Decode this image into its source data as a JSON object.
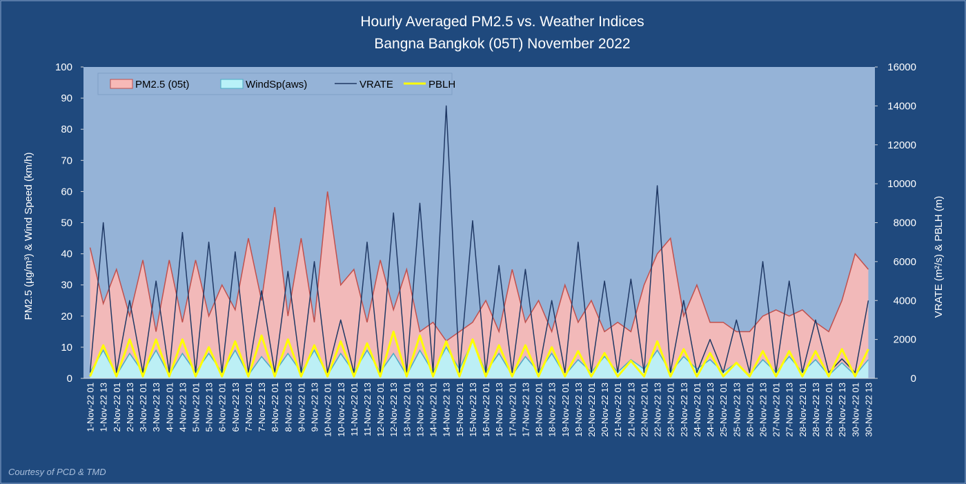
{
  "chart_data": {
    "type": "combo",
    "title": "Hourly Averaged  PM2.5 vs. Weather Indices",
    "subtitle": "Bangna Bangkok (05T) November 2022",
    "y_label": "PM2.5 (µg/m³)  &  Wind Speed (km/h)",
    "y2_label": "VRATE (m²/s) & PBLH (m)",
    "footnote": "Courtesy of PCD & TMD",
    "categories": [
      "1-Nov-22 01",
      "1-Nov-22 13",
      "2-Nov-22 01",
      "2-Nov-22 13",
      "3-Nov-22 01",
      "3-Nov-22 13",
      "4-Nov-22 01",
      "4-Nov-22 13",
      "5-Nov-22 01",
      "5-Nov-22 13",
      "6-Nov-22 01",
      "6-Nov-22 13",
      "7-Nov-22 01",
      "7-Nov-22 13",
      "8-Nov-22 01",
      "8-Nov-22 13",
      "9-Nov-22 01",
      "9-Nov-22 13",
      "10-Nov-22 01",
      "10-Nov-22 13",
      "11-Nov-22 01",
      "11-Nov-22 13",
      "12-Nov-22 01",
      "12-Nov-22 13",
      "13-Nov-22 01",
      "13-Nov-22 13",
      "14-Nov-22 01",
      "14-Nov-22 13",
      "15-Nov-22 01",
      "15-Nov-22 13",
      "16-Nov-22 01",
      "16-Nov-22 13",
      "17-Nov-22 01",
      "17-Nov-22 13",
      "18-Nov-22 01",
      "18-Nov-22 13",
      "19-Nov-22 01",
      "19-Nov-22 13",
      "20-Nov-22 01",
      "20-Nov-22 13",
      "21-Nov-22 01",
      "21-Nov-22 13",
      "22-Nov-22 01",
      "22-Nov-22 13",
      "23-Nov-22 01",
      "23-Nov-22 13",
      "24-Nov-22 01",
      "24-Nov-22 13",
      "25-Nov-22 01",
      "25-Nov-22 13",
      "26-Nov-22 01",
      "26-Nov-22 13",
      "27-Nov-22 01",
      "27-Nov-22 13",
      "28-Nov-22 01",
      "28-Nov-22 13",
      "29-Nov-22 01",
      "29-Nov-22 13",
      "30-Nov-22 01",
      "30-Nov-22 13"
    ],
    "series": [
      {
        "name": "PM2.5 (05t)",
        "kind": "area",
        "color": "#c0504d",
        "fill": "#f7b9b7",
        "values": [
          42,
          24,
          35,
          20,
          38,
          15,
          38,
          18,
          38,
          20,
          30,
          22,
          45,
          25,
          55,
          20,
          45,
          18,
          60,
          30,
          35,
          18,
          38,
          22,
          35,
          15,
          18,
          12,
          15,
          18,
          25,
          15,
          35,
          18,
          25,
          15,
          30,
          18,
          25,
          15,
          18,
          15,
          30,
          40,
          45,
          20,
          30,
          18,
          18,
          15,
          15,
          20,
          22,
          20,
          22,
          18,
          15,
          25,
          40,
          35
        ]
      },
      {
        "name": "WindSp(aws)",
        "kind": "area",
        "color": "#4bacc6",
        "fill": "#b8f1f8",
        "values": [
          2,
          9,
          1,
          8,
          2,
          9,
          1,
          8,
          2,
          8,
          2,
          9,
          1,
          7,
          2,
          8,
          2,
          9,
          1,
          8,
          2,
          9,
          2,
          8,
          1,
          9,
          2,
          10,
          3,
          12,
          2,
          8,
          1,
          7,
          2,
          8,
          1,
          6,
          2,
          7,
          2,
          6,
          3,
          9,
          2,
          7,
          3,
          6,
          2,
          5,
          1,
          6,
          2,
          7,
          2,
          6,
          1,
          5,
          1,
          6
        ]
      },
      {
        "name": "VRATE",
        "kind": "line",
        "axis": "y2",
        "color": "#1f3864",
        "values": [
          300,
          8000,
          300,
          4000,
          300,
          5000,
          300,
          7500,
          300,
          7000,
          300,
          6500,
          300,
          4500,
          300,
          5500,
          300,
          6000,
          300,
          3000,
          300,
          7000,
          300,
          8500,
          300,
          9000,
          300,
          14000,
          300,
          8100,
          300,
          5800,
          300,
          5600,
          300,
          4000,
          300,
          7000,
          300,
          5000,
          300,
          5100,
          300,
          9900,
          300,
          4000,
          300,
          2000,
          300,
          3000,
          300,
          6000,
          300,
          5000,
          300,
          3000,
          300,
          1000,
          300,
          4000
        ]
      },
      {
        "name": "PBLH",
        "kind": "line",
        "axis": "y2",
        "color": "#ffff00",
        "values": [
          100,
          1700,
          100,
          2000,
          100,
          2000,
          100,
          2000,
          100,
          1600,
          100,
          1900,
          100,
          2200,
          100,
          2000,
          100,
          1700,
          100,
          1900,
          100,
          1800,
          100,
          2400,
          100,
          2200,
          100,
          1900,
          100,
          2000,
          100,
          1700,
          100,
          1700,
          100,
          1600,
          100,
          1400,
          100,
          1300,
          100,
          900,
          100,
          1900,
          100,
          1500,
          100,
          1300,
          100,
          800,
          100,
          1400,
          100,
          1400,
          100,
          1400,
          100,
          1500,
          100,
          1500
        ]
      }
    ],
    "ylim": [
      0,
      100
    ],
    "yticks": [
      0,
      10,
      20,
      30,
      40,
      50,
      60,
      70,
      80,
      90,
      100
    ],
    "y2lim": [
      0,
      16000
    ],
    "y2ticks": [
      0,
      2000,
      4000,
      6000,
      8000,
      10000,
      12000,
      14000,
      16000
    ],
    "grid": false,
    "legend": "top-left"
  }
}
